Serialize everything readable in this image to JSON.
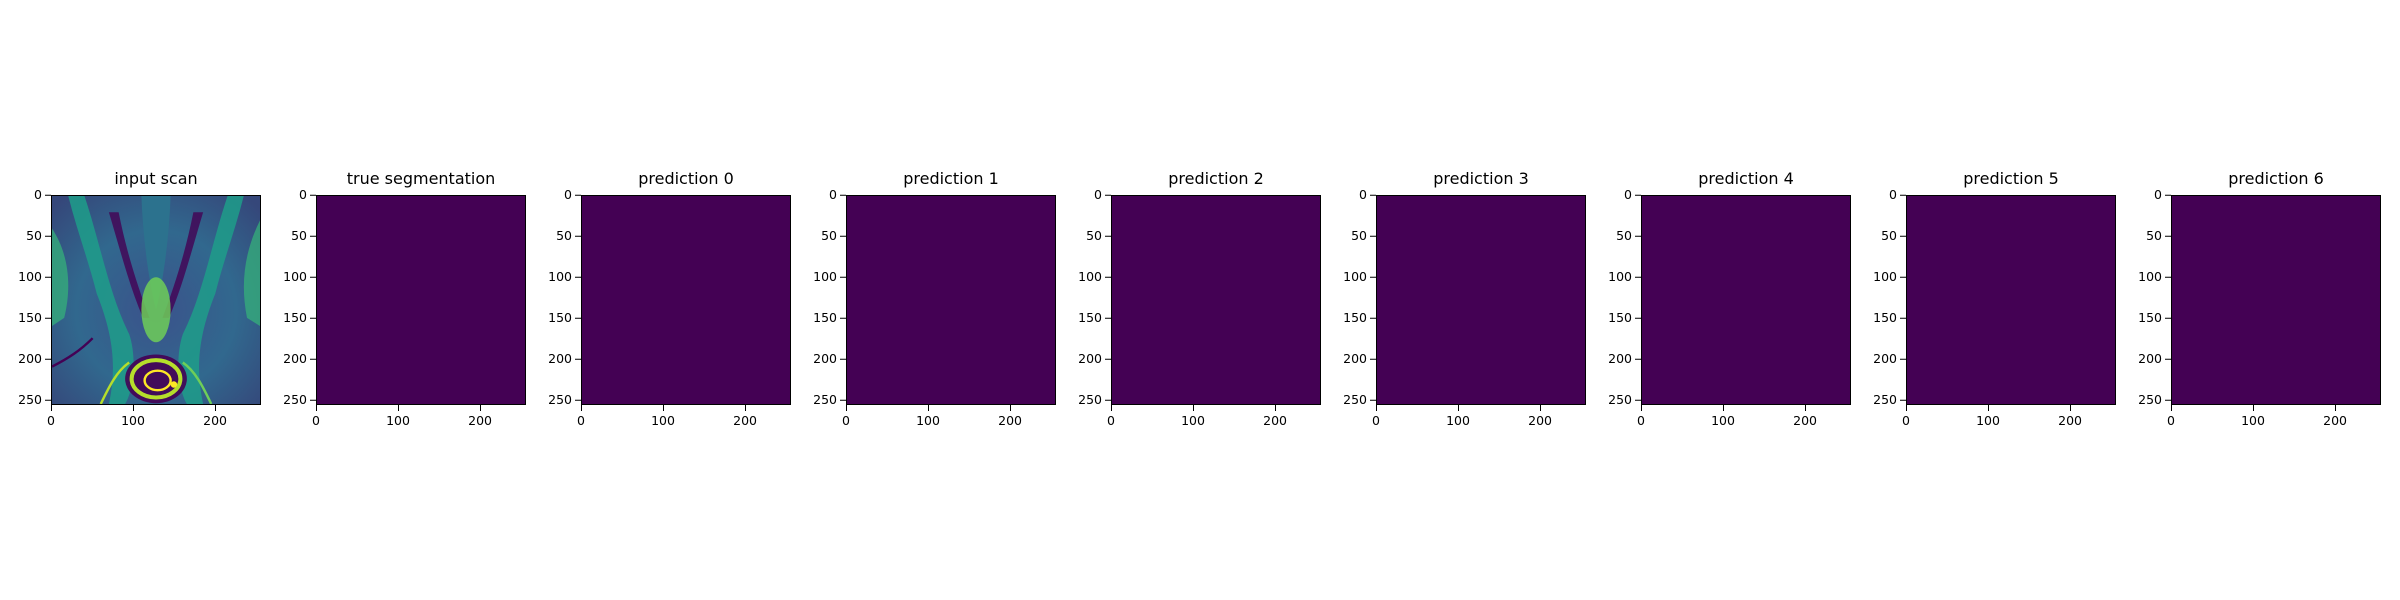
{
  "chart_data": {
    "type": "image-grid",
    "colormap": "viridis",
    "image_size": [
      256,
      256
    ],
    "panels": [
      {
        "title": "input scan",
        "content": "scan"
      },
      {
        "title": "true segmentation",
        "content": "uniform",
        "fill": "#440154"
      },
      {
        "title": "prediction 0",
        "content": "uniform",
        "fill": "#440154"
      },
      {
        "title": "prediction 1",
        "content": "uniform",
        "fill": "#440154"
      },
      {
        "title": "prediction 2",
        "content": "uniform",
        "fill": "#440154"
      },
      {
        "title": "prediction 3",
        "content": "uniform",
        "fill": "#440154"
      },
      {
        "title": "prediction 4",
        "content": "uniform",
        "fill": "#440154"
      },
      {
        "title": "prediction 5",
        "content": "uniform",
        "fill": "#440154"
      },
      {
        "title": "prediction 6",
        "content": "uniform",
        "fill": "#440154"
      }
    ],
    "y_ticks": [
      0,
      50,
      100,
      150,
      200,
      250
    ],
    "x_ticks": [
      0,
      100,
      200
    ],
    "xlim": [
      0,
      256
    ],
    "ylim": [
      256,
      0
    ]
  }
}
